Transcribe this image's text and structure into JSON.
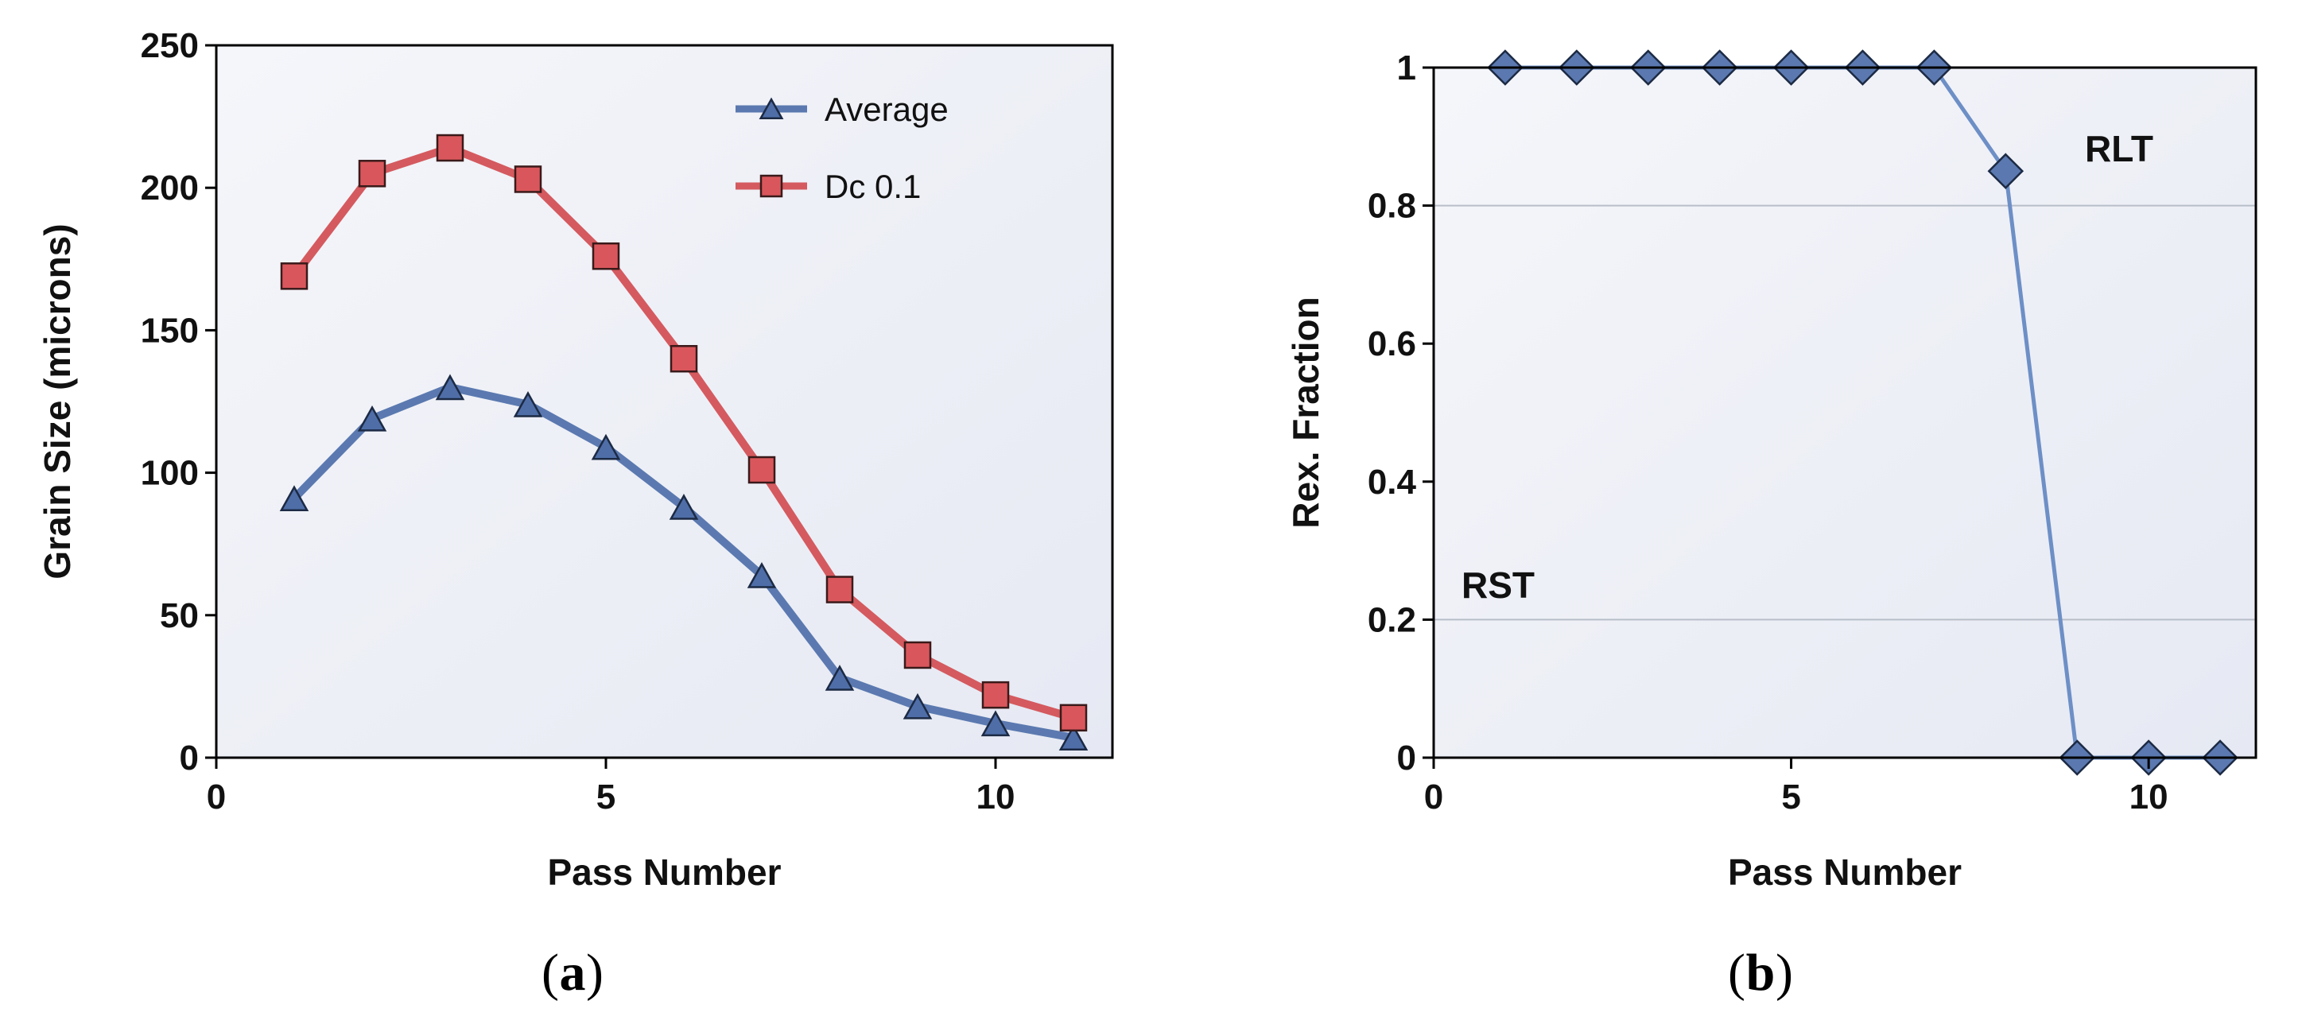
{
  "colors": {
    "average": "#5b79b0",
    "average_fill": "#4f6ea8",
    "dc": "#d45a5f",
    "dc_fill": "#d9575c",
    "rex": "#6d8fc6",
    "rex_fill": "#5b79b0",
    "plot_bg": "#eef0f6",
    "threshold_line": "#b8bec8"
  },
  "chart_data": [
    {
      "type": "line",
      "panel_label": "a",
      "xlabel": "Pass Number",
      "ylabel": "Grain Size (microns)",
      "xlim": [
        0,
        11.5
      ],
      "ylim": [
        0,
        250
      ],
      "xticks": [
        0,
        5,
        10
      ],
      "yticks": [
        0,
        50,
        100,
        150,
        200,
        250
      ],
      "legend_position": "top-right",
      "series": [
        {
          "name": "Average",
          "marker": "triangle",
          "x": [
            1,
            2,
            3,
            4,
            5,
            6,
            7,
            8,
            9,
            10,
            11
          ],
          "values": [
            91,
            119,
            130,
            124,
            109,
            88,
            64,
            28,
            18,
            12,
            7
          ]
        },
        {
          "name": "Dc 0.1",
          "marker": "square",
          "x": [
            1,
            2,
            3,
            4,
            5,
            6,
            7,
            8,
            9,
            10,
            11
          ],
          "values": [
            169,
            205,
            214,
            203,
            176,
            140,
            101,
            59,
            36,
            22,
            14
          ]
        }
      ]
    },
    {
      "type": "line",
      "panel_label": "b",
      "xlabel": "Pass Number",
      "ylabel": "Rex. Fraction",
      "xlim": [
        0,
        11.5
      ],
      "ylim": [
        0,
        1
      ],
      "xticks": [
        0,
        5,
        10
      ],
      "yticks": [
        0,
        0.2,
        0.4,
        0.6,
        0.8,
        1
      ],
      "series": [
        {
          "name": "Rex. Fraction",
          "marker": "diamond",
          "x": [
            1,
            2,
            3,
            4,
            5,
            6,
            7,
            8,
            9,
            10,
            11
          ],
          "values": [
            1,
            1,
            1,
            1,
            1,
            1,
            1,
            0.85,
            0,
            0,
            0
          ]
        }
      ],
      "annotations": [
        {
          "text": "RLT",
          "y": 0.8
        },
        {
          "text": "RST",
          "y": 0.2
        }
      ]
    }
  ]
}
